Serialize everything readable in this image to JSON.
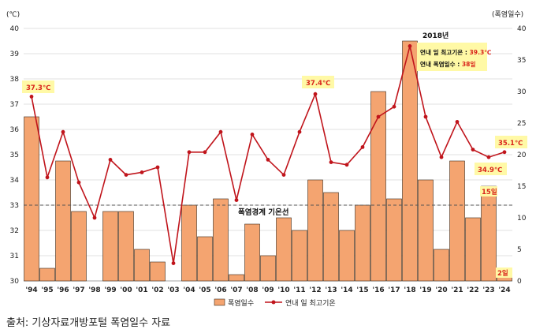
{
  "unit_left": "(℃)",
  "unit_right": "(폭염일수)",
  "source": "출처: 기상자료개방포털 폭염일수 자료",
  "threshold_label": "폭염경계 기온선",
  "annotations": {
    "box_title": "2018년",
    "box_line1_prefix": "연내 일 최고기온 : ",
    "box_line1_value": "39.3℃",
    "box_line2_prefix": "연내 폭염일수 : ",
    "box_line2_value": "38일",
    "max_1994": "37.3℃",
    "max_2012": "37.4℃",
    "max_2024": "35.1℃",
    "max_2023": "34.9℃",
    "days_2023": "15일",
    "days_2024": "2일"
  },
  "legend": {
    "bar": "폭염일수",
    "line": "연내 일 최고기온"
  },
  "colors": {
    "bar_fill": "#F4A470",
    "bar_stroke": "#3a2a1a",
    "line": "#C0141B",
    "grid": "#d9d9d9",
    "highlight_bg": "#FFF9A6",
    "label_red": "#D9241B"
  },
  "chart_data": {
    "type": "bar",
    "categories": [
      "'94",
      "'95",
      "'96",
      "'97",
      "'98",
      "'99",
      "'00",
      "'01",
      "'02",
      "'03",
      "'04",
      "'05",
      "'06",
      "'07",
      "'08",
      "'09",
      "'10",
      "'11",
      "'12",
      "'13",
      "'14",
      "'15",
      "'16",
      "'17",
      "'18",
      "'19",
      "'20",
      "'21",
      "'22",
      "'23",
      "'24"
    ],
    "series": [
      {
        "name": "폭염일수",
        "axis": "right",
        "type": "bar",
        "values": [
          26,
          2,
          19,
          11,
          0,
          11,
          11,
          5,
          3,
          0,
          12,
          7,
          13,
          1,
          9,
          4,
          10,
          8,
          16,
          14,
          8,
          12,
          30,
          13,
          38,
          16,
          5,
          19,
          10,
          15,
          2
        ]
      },
      {
        "name": "연내 일 최고기온",
        "axis": "left",
        "type": "line",
        "values": [
          37.3,
          34.1,
          35.9,
          33.9,
          32.5,
          34.8,
          34.2,
          34.3,
          34.5,
          30.7,
          35.1,
          35.1,
          35.9,
          33.2,
          35.8,
          34.8,
          34.2,
          35.9,
          37.4,
          34.7,
          34.6,
          35.3,
          36.5,
          36.9,
          39.3,
          36.5,
          34.9,
          36.3,
          35.2,
          34.9,
          35.1
        ]
      }
    ],
    "ylim_left": [
      30,
      40
    ],
    "yticks_left": [
      30,
      31,
      32,
      33,
      34,
      35,
      36,
      37,
      38,
      39,
      40
    ],
    "ylim_right": [
      0,
      40
    ],
    "yticks_right": [
      0,
      5,
      10,
      15,
      20,
      25,
      30,
      35,
      40
    ],
    "threshold": 33,
    "legend_position": "bottom"
  }
}
